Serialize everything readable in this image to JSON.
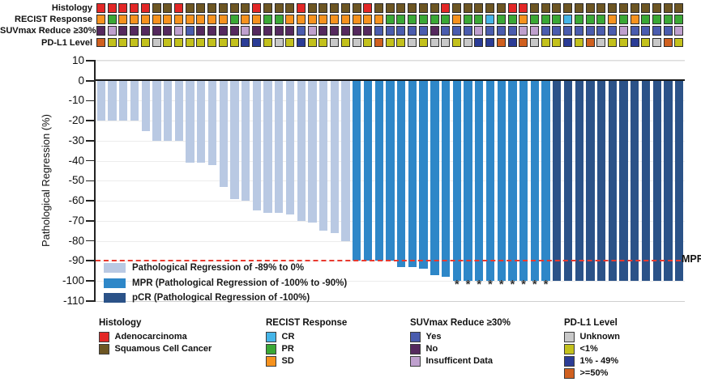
{
  "palette": {
    "ADC": "#e32726",
    "SCC": "#6d5623",
    "CR": "#45b5e8",
    "PR": "#3aa835",
    "SD": "#f6921e",
    "YES": "#4a5cae",
    "NO": "#55295e",
    "INS": "#bfa0ce",
    "UNK": "#c8c8c8",
    "LT1": "#c3c11c",
    "P1_49": "#2b3c96",
    "GE50": "#d0601f",
    "bar_light": "#b9c9e3",
    "bar_mpr": "#2e87c8",
    "bar_pcr": "#2b5288",
    "ref_line": "#e8392e"
  },
  "tracks": {
    "rows": [
      {
        "id": "histology",
        "label": "Histology",
        "cells": [
          "ADC",
          "ADC",
          "ADC",
          "ADC",
          "ADC",
          "SCC",
          "SCC",
          "ADC",
          "SCC",
          "SCC",
          "SCC",
          "SCC",
          "SCC",
          "SCC",
          "ADC",
          "SCC",
          "SCC",
          "SCC",
          "ADC",
          "SCC",
          "SCC",
          "SCC",
          "SCC",
          "SCC",
          "ADC",
          "SCC",
          "SCC",
          "SCC",
          "SCC",
          "SCC",
          "SCC",
          "ADC",
          "SCC",
          "SCC",
          "SCC",
          "SCC",
          "SCC",
          "ADC",
          "ADC",
          "SCC",
          "SCC",
          "SCC",
          "SCC",
          "SCC",
          "SCC",
          "SCC",
          "SCC",
          "SCC",
          "SCC",
          "SCC",
          "SCC",
          "SCC",
          "SCC"
        ]
      },
      {
        "id": "recist",
        "label": "RECIST Response",
        "cells": [
          "SD",
          "PR",
          "SD",
          "SD",
          "SD",
          "SD",
          "SD",
          "SD",
          "SD",
          "SD",
          "SD",
          "SD",
          "PR",
          "SD",
          "SD",
          "PR",
          "PR",
          "SD",
          "SD",
          "SD",
          "SD",
          "SD",
          "SD",
          "SD",
          "SD",
          "SD",
          "PR",
          "PR",
          "PR",
          "PR",
          "PR",
          "PR",
          "SD",
          "PR",
          "PR",
          "CR",
          "PR",
          "PR",
          "SD",
          "PR",
          "PR",
          "PR",
          "CR",
          "PR",
          "PR",
          "PR",
          "SD",
          "PR",
          "SD",
          "PR",
          "PR",
          "PR",
          "PR"
        ]
      },
      {
        "id": "suvmax",
        "label": "SUVmax Reduce ≥30%",
        "cells": [
          "NO",
          "INS",
          "NO",
          "NO",
          "NO",
          "NO",
          "NO",
          "INS",
          "YES",
          "NO",
          "NO",
          "NO",
          "NO",
          "INS",
          "NO",
          "NO",
          "NO",
          "NO",
          "YES",
          "INS",
          "NO",
          "NO",
          "NO",
          "NO",
          "NO",
          "YES",
          "YES",
          "YES",
          "YES",
          "YES",
          "NO",
          "YES",
          "YES",
          "YES",
          "INS",
          "YES",
          "YES",
          "YES",
          "INS",
          "INS",
          "YES",
          "YES",
          "YES",
          "YES",
          "YES",
          "YES",
          "YES",
          "INS",
          "YES",
          "YES",
          "YES",
          "YES",
          "INS"
        ]
      },
      {
        "id": "pdl1",
        "label": "PD-L1 Level",
        "cells": [
          "GE50",
          "LT1",
          "LT1",
          "LT1",
          "LT1",
          "UNK",
          "LT1",
          "LT1",
          "LT1",
          "LT1",
          "LT1",
          "LT1",
          "LT1",
          "P1_49",
          "P1_49",
          "LT1",
          "UNK",
          "LT1",
          "P1_49",
          "LT1",
          "LT1",
          "UNK",
          "LT1",
          "UNK",
          "LT1",
          "GE50",
          "LT1",
          "LT1",
          "UNK",
          "LT1",
          "UNK",
          "UNK",
          "LT1",
          "UNK",
          "P1_49",
          "P1_49",
          "GE50",
          "P1_49",
          "GE50",
          "UNK",
          "LT1",
          "LT1",
          "P1_49",
          "LT1",
          "GE50",
          "UNK",
          "LT1",
          "LT1",
          "P1_49",
          "LT1",
          "UNK",
          "GE50",
          "LT1"
        ]
      }
    ]
  },
  "chart_data": {
    "type": "bar",
    "title": "",
    "xlabel": "",
    "ylabel": "Pathological Regression (%)",
    "ylim": [
      -110,
      10
    ],
    "yticks": [
      10,
      0,
      -10,
      -20,
      -30,
      -40,
      -50,
      -60,
      -70,
      -80,
      -90,
      -100,
      -110
    ],
    "grid": true,
    "values": [
      -20,
      -20,
      -20,
      -20,
      -25,
      -30,
      -30,
      -30,
      -41,
      -41,
      -42,
      -53,
      -59,
      -60,
      -65,
      -66,
      -66,
      -67,
      -70,
      -71,
      -75,
      -76,
      -80,
      -90,
      -90,
      -90,
      -90,
      -93,
      -93,
      -94,
      -97,
      -98,
      -100,
      -100,
      -100,
      -100,
      -100,
      -100,
      -100,
      -100,
      -100,
      -100,
      -100,
      -100,
      -100,
      -100,
      -100,
      -100,
      -100,
      -100,
      -100,
      -100,
      -100
    ],
    "bar_groups": {
      "light_end_col": 23,
      "mpr_end_col": 41,
      "total_cols": 53
    },
    "asterisk_cols": [
      33,
      34,
      35,
      36,
      37,
      38,
      39,
      40,
      41
    ],
    "reference_line": {
      "value": -90,
      "label": "MPR"
    },
    "legend_position": "bottom-left-inside",
    "legend": [
      {
        "key": "bar_light",
        "label": "Pathological Regression of -89% to 0%"
      },
      {
        "key": "bar_mpr",
        "label": "MPR (Pathological Regression of -100% to -90%)"
      },
      {
        "key": "bar_pcr",
        "label": "pCR (Pathological Regression of -100%)"
      }
    ]
  },
  "bottom_legend": {
    "groups": [
      {
        "id": "histology",
        "title": "Histology",
        "items": [
          {
            "key": "ADC",
            "label": "Adenocarcinoma"
          },
          {
            "key": "SCC",
            "label": "Squamous Cell Cancer"
          }
        ]
      },
      {
        "id": "recist",
        "title": "RECIST Response",
        "items": [
          {
            "key": "CR",
            "label": "CR"
          },
          {
            "key": "PR",
            "label": "PR"
          },
          {
            "key": "SD",
            "label": "SD"
          }
        ]
      },
      {
        "id": "suvmax",
        "title": "SUVmax Reduce ≥30%",
        "items": [
          {
            "key": "YES",
            "label": "Yes"
          },
          {
            "key": "NO",
            "label": "No"
          },
          {
            "key": "INS",
            "label": "Insufficent Data"
          }
        ]
      },
      {
        "id": "pdl1",
        "title": "PD-L1 Level",
        "items": [
          {
            "key": "UNK",
            "label": "Unknown"
          },
          {
            "key": "LT1",
            "label": "<1%"
          },
          {
            "key": "P1_49",
            "label": "1% - 49%"
          },
          {
            "key": "GE50",
            "label": ">=50%"
          }
        ]
      }
    ]
  }
}
